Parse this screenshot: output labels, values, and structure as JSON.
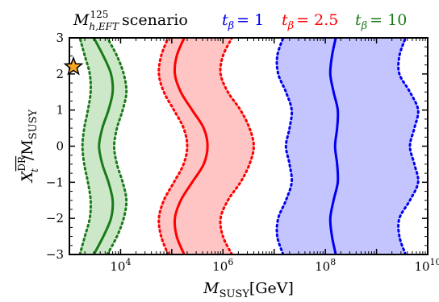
{
  "chart_data": {
    "type": "line",
    "title_main": "M",
    "title_sup": "125",
    "title_sub": "h,EFT",
    "title_rest": "scenario",
    "xlabel_main": "M",
    "xlabel_sub": "SUSY",
    "xlabel_unit": "[GeV]",
    "ylabel_main": "X",
    "ylabel_sup": "DR",
    "ylabel_sub": "t",
    "ylabel_den": "/M",
    "ylabel_den_sub": "SUSY",
    "x_scale": "log",
    "xlim": [
      1000,
      10000000000
    ],
    "ylim": [
      -3,
      3
    ],
    "x_ticks": [
      10000,
      1000000,
      100000000,
      10000000000
    ],
    "x_tick_base": [
      "10",
      "10",
      "10",
      "10"
    ],
    "x_tick_exp": [
      "4",
      "6",
      "8",
      "10"
    ],
    "y_ticks": [
      -3,
      -2,
      -1,
      0,
      1,
      2,
      3
    ],
    "y_tick_labels": [
      "−3",
      "−2",
      "−1",
      "0",
      "1",
      "2",
      "3"
    ],
    "legend_placement": "top-right",
    "series": [
      {
        "name_lhs": "t",
        "name_sub": "β",
        "name_rhs": "= 10",
        "color": "#1a7a1a",
        "fill": "#cde8c8",
        "y": [
          -3,
          -2.5,
          -2,
          -1.5,
          -1,
          -0.5,
          0,
          0.5,
          1,
          1.5,
          2,
          2.5,
          3
        ],
        "x_central": [
          3000,
          4600,
          6500,
          7000,
          5800,
          4400,
          3800,
          4400,
          5800,
          7000,
          6500,
          4600,
          3000
        ],
        "x_lower": [
          1600,
          2000,
          2500,
          2600,
          2300,
          1950,
          1800,
          1950,
          2300,
          2600,
          2500,
          2000,
          1600
        ],
        "x_upper": [
          5500,
          8500,
          11500,
          13000,
          11000,
          8500,
          7500,
          8500,
          11000,
          13000,
          11500,
          8500,
          5500
        ]
      },
      {
        "name_lhs": "t",
        "name_sub": "β",
        "name_rhs": "= 2.5",
        "color": "#ff0000",
        "fill": "#ffc4c4",
        "y": [
          -3,
          -2.5,
          -2,
          -1.5,
          -1,
          -0.5,
          0,
          0.5,
          1,
          1.5,
          2,
          2.5,
          3
        ],
        "x_central": [
          175000,
          125000,
          115000,
          150000,
          250000,
          420000,
          500000,
          420000,
          250000,
          150000,
          115000,
          125000,
          175000
        ],
        "x_lower": [
          85000,
          62000,
          56000,
          70000,
          110000,
          170000,
          200000,
          170000,
          110000,
          70000,
          56000,
          62000,
          85000
        ],
        "x_upper": [
          1500000,
          1000000,
          900000,
          1250000,
          2200000,
          3300000,
          4000000,
          3300000,
          2200000,
          1250000,
          900000,
          1000000,
          1500000
        ]
      },
      {
        "name_lhs": "t",
        "name_sub": "β",
        "name_rhs": "= 1",
        "color": "#0000ee",
        "fill": "#c4c4ff",
        "y": [
          -3,
          -2.5,
          -2,
          -1.5,
          -1,
          -0.5,
          0,
          0.5,
          1,
          1.5,
          2,
          2.5,
          3
        ],
        "x_central": [
          160000000,
          135000000,
          125000000,
          145000000,
          175000000,
          170000000,
          155000000,
          170000000,
          175000000,
          145000000,
          125000000,
          135000000,
          160000000
        ],
        "x_lower": [
          15000000,
          11500000,
          12000000,
          17000000,
          22000000,
          20000000,
          17000000,
          20000000,
          22000000,
          17000000,
          12000000,
          11500000,
          15000000
        ],
        "x_upper": [
          3700000000,
          2800000000,
          2800000000,
          4500000000,
          6500000000,
          5500000000,
          4500000000,
          5500000000,
          6500000000,
          4500000000,
          2800000000,
          2800000000,
          3700000000
        ]
      }
    ],
    "marker": {
      "shape": "star",
      "x": 1200,
      "y": 2.2,
      "fill": "#f5a623",
      "stroke": "#000000"
    }
  }
}
